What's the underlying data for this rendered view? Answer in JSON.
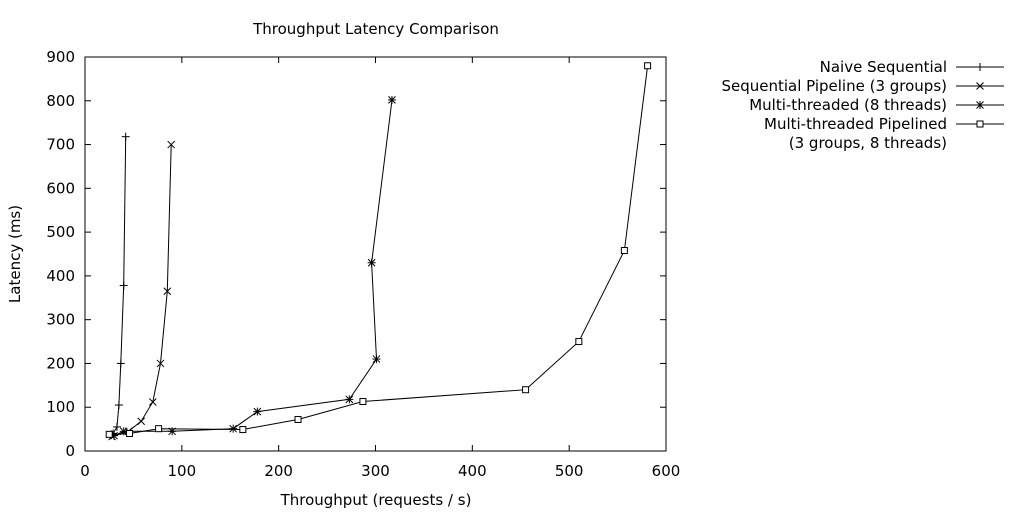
{
  "chart_data": {
    "type": "line",
    "title": "Throughput Latency Comparison",
    "xlabel": "Throughput (requests / s)",
    "ylabel": "Latency (ms)",
    "xlim": [
      0,
      600
    ],
    "ylim": [
      0,
      900
    ],
    "xticks": [
      0,
      100,
      200,
      300,
      400,
      500,
      600
    ],
    "yticks": [
      0,
      100,
      200,
      300,
      400,
      500,
      600,
      700,
      800,
      900
    ],
    "grid": false,
    "legend_position": "outside-right",
    "series": [
      {
        "name": "Naive Sequential",
        "marker": "plus",
        "color": "#000000",
        "points": [
          [
            27,
            38
          ],
          [
            29,
            40
          ],
          [
            33,
            55
          ],
          [
            35,
            105
          ],
          [
            37,
            200
          ],
          [
            40,
            378
          ],
          [
            42,
            718
          ]
        ]
      },
      {
        "name": "Sequential Pipeline (3 groups)",
        "marker": "cross",
        "color": "#000000",
        "points": [
          [
            28,
            33
          ],
          [
            45,
            45
          ],
          [
            58,
            68
          ],
          [
            70,
            112
          ],
          [
            78,
            200
          ],
          [
            85,
            365
          ],
          [
            89,
            700
          ]
        ]
      },
      {
        "name": "Multi-threaded (8 threads)",
        "marker": "star",
        "color": "#000000",
        "points": [
          [
            30,
            35
          ],
          [
            40,
            45
          ],
          [
            90,
            45
          ],
          [
            153,
            51
          ],
          [
            178,
            90
          ],
          [
            273,
            118
          ],
          [
            301,
            210
          ],
          [
            296,
            430
          ],
          [
            317,
            802
          ]
        ]
      },
      {
        "name_lines": [
          "Multi-threaded Pipelined",
          "(3 groups, 8 threads)"
        ],
        "marker": "square",
        "color": "#000000",
        "points": [
          [
            25,
            38
          ],
          [
            46,
            40
          ],
          [
            76,
            51
          ],
          [
            163,
            49
          ],
          [
            220,
            72
          ],
          [
            287,
            113
          ],
          [
            455,
            140
          ],
          [
            510,
            250
          ],
          [
            557,
            458
          ],
          [
            581,
            880
          ]
        ]
      }
    ]
  }
}
